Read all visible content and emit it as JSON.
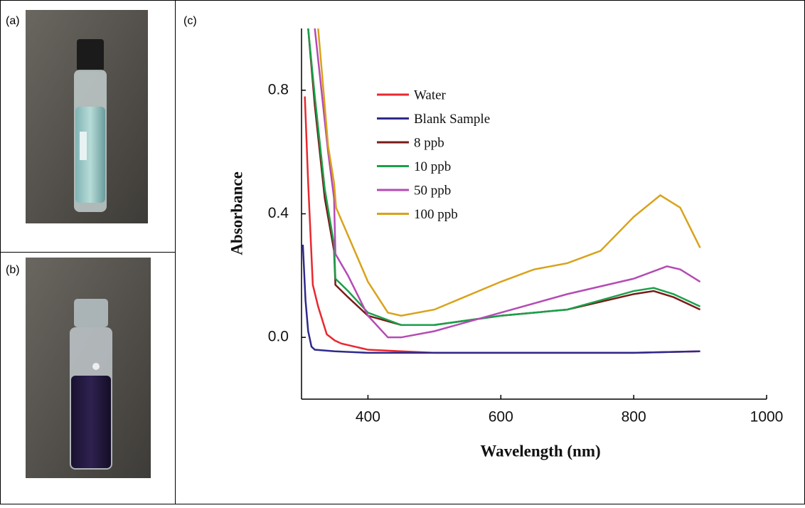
{
  "panels": {
    "a": "(a)",
    "b": "(b)",
    "c": "(c)"
  },
  "chart_data": {
    "type": "line",
    "xlabel": "Wavelength (nm)",
    "ylabel": "Absorbance",
    "xlim": [
      300,
      1000
    ],
    "ylim": [
      -0.2,
      1.0
    ],
    "xticks": [
      400,
      600,
      800,
      1000
    ],
    "yticks": [
      {
        "value": 0,
        "label": "0.0"
      },
      0.4,
      0.8
    ],
    "legend": "upper center",
    "series": [
      {
        "name": "Water",
        "color": "#e8282e",
        "x": [
          305,
          310,
          317,
          325,
          338,
          350,
          360,
          380,
          400,
          450,
          500,
          600,
          700,
          800,
          900
        ],
        "values": [
          0.78,
          0.5,
          0.17,
          0.1,
          0.01,
          -0.01,
          -0.02,
          -0.03,
          -0.04,
          -0.045,
          -0.05,
          -0.05,
          -0.05,
          -0.05,
          -0.045
        ]
      },
      {
        "name": "Blank Sample",
        "color": "#2e2a8c",
        "x": [
          302,
          306,
          310,
          315,
          320,
          350,
          400,
          500,
          600,
          700,
          800,
          900
        ],
        "values": [
          0.3,
          0.12,
          0.02,
          -0.03,
          -0.04,
          -0.045,
          -0.05,
          -0.05,
          -0.05,
          -0.05,
          -0.05,
          -0.045
        ]
      },
      {
        "name": "8 ppb",
        "color": "#7a1a1a",
        "x": [
          310,
          320,
          335,
          349,
          351,
          370,
          400,
          450,
          500,
          600,
          700,
          800,
          830,
          860,
          900
        ],
        "values": [
          1.0,
          0.75,
          0.45,
          0.28,
          0.17,
          0.13,
          0.07,
          0.04,
          0.04,
          0.07,
          0.09,
          0.14,
          0.15,
          0.13,
          0.09
        ]
      },
      {
        "name": "10 ppb",
        "color": "#1aa04a",
        "x": [
          310,
          320,
          335,
          349,
          351,
          370,
          400,
          450,
          500,
          600,
          700,
          800,
          830,
          860,
          900
        ],
        "values": [
          1.0,
          0.78,
          0.48,
          0.3,
          0.19,
          0.15,
          0.08,
          0.04,
          0.04,
          0.07,
          0.09,
          0.15,
          0.16,
          0.14,
          0.1
        ]
      },
      {
        "name": "50 ppb",
        "color": "#b44bb4",
        "x": [
          320,
          330,
          340,
          349,
          351,
          370,
          400,
          430,
          450,
          500,
          600,
          700,
          800,
          850,
          870,
          900
        ],
        "values": [
          1.0,
          0.8,
          0.6,
          0.45,
          0.27,
          0.2,
          0.07,
          0.0,
          0.0,
          0.02,
          0.08,
          0.14,
          0.19,
          0.23,
          0.22,
          0.18
        ]
      },
      {
        "name": "100 ppb",
        "color": "#d9a21a",
        "x": [
          325,
          333,
          340,
          349,
          352,
          360,
          400,
          430,
          450,
          500,
          600,
          650,
          700,
          750,
          800,
          840,
          870,
          900
        ],
        "values": [
          1.0,
          0.8,
          0.62,
          0.5,
          0.42,
          0.38,
          0.18,
          0.08,
          0.07,
          0.09,
          0.18,
          0.22,
          0.24,
          0.28,
          0.39,
          0.46,
          0.42,
          0.29
        ]
      }
    ]
  }
}
